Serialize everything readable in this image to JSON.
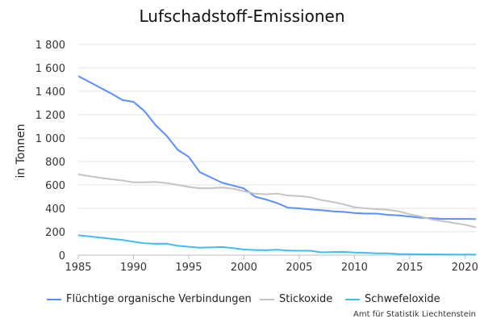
{
  "chart_data": {
    "type": "line",
    "title": "Lufschadstoff-Emissionen",
    "ylabel": "in Tonnen",
    "xlabel": "",
    "xlim": [
      1985,
      2021
    ],
    "ylim": [
      0,
      1800
    ],
    "x_ticks": [
      "1985",
      "1990",
      "1995",
      "2000",
      "2005",
      "2010",
      "2015",
      "2020"
    ],
    "y_ticks": [
      "0",
      "200",
      "400",
      "600",
      "800",
      "1 000",
      "1 200",
      "1 400",
      "1 600",
      "1 800"
    ],
    "grid": "horizontal",
    "legend_position": "bottom",
    "x": [
      1985,
      1986,
      1987,
      1988,
      1989,
      1990,
      1991,
      1992,
      1993,
      1994,
      1995,
      1996,
      1997,
      1998,
      1999,
      2000,
      2001,
      2002,
      2003,
      2004,
      2005,
      2006,
      2007,
      2008,
      2009,
      2010,
      2011,
      2012,
      2013,
      2014,
      2015,
      2016,
      2017,
      2018,
      2019,
      2020,
      2021
    ],
    "series": [
      {
        "name": "Flüchtige organische Verbindungen",
        "color": "#5b8ff9",
        "values": [
          1530,
          1480,
          1430,
          1380,
          1325,
          1310,
          1230,
          1110,
          1020,
          900,
          840,
          710,
          665,
          620,
          595,
          570,
          500,
          475,
          445,
          405,
          400,
          390,
          385,
          375,
          370,
          360,
          355,
          355,
          345,
          340,
          330,
          320,
          315,
          310,
          310,
          310,
          308
        ]
      },
      {
        "name": "Stickoxide",
        "color": "#c4c4c4",
        "values": [
          690,
          675,
          660,
          648,
          638,
          622,
          622,
          626,
          616,
          600,
          583,
          572,
          572,
          578,
          568,
          546,
          525,
          520,
          526,
          510,
          505,
          495,
          470,
          455,
          435,
          410,
          400,
          393,
          388,
          375,
          350,
          330,
          305,
          290,
          275,
          260,
          238
        ]
      },
      {
        "name": "Schwefeloxide",
        "color": "#40bdf0",
        "values": [
          170,
          160,
          150,
          140,
          130,
          115,
          102,
          97,
          98,
          80,
          72,
          64,
          66,
          70,
          60,
          48,
          44,
          42,
          46,
          40,
          38,
          38,
          24,
          27,
          28,
          22,
          20,
          16,
          15,
          10,
          9,
          7,
          7,
          6,
          5,
          5,
          5
        ]
      }
    ]
  },
  "source": "Amt für Statistik Liechtenstein"
}
